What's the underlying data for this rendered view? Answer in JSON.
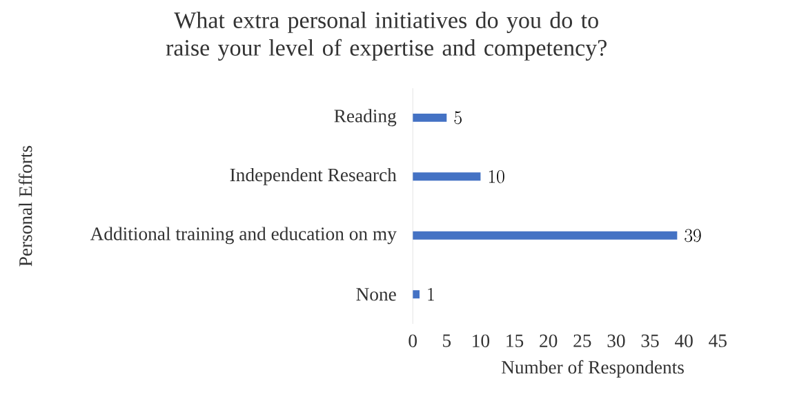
{
  "chart_data": {
    "type": "bar",
    "orientation": "horizontal",
    "title": "What extra personal initiatives do you do to raise your level of expertise and competency?",
    "xlabel": "Number of Respondents",
    "ylabel": "Personal Efforts",
    "categories": [
      "Reading",
      "Independent Research",
      "Additional training and education on my",
      "None"
    ],
    "values": [
      5,
      10,
      39,
      1
    ],
    "color": "#4472c4",
    "data_labels": true,
    "xlim": [
      0,
      45
    ],
    "xticks": [
      0,
      5,
      10,
      15,
      20,
      25,
      30,
      35,
      40,
      45
    ],
    "grid": false
  }
}
